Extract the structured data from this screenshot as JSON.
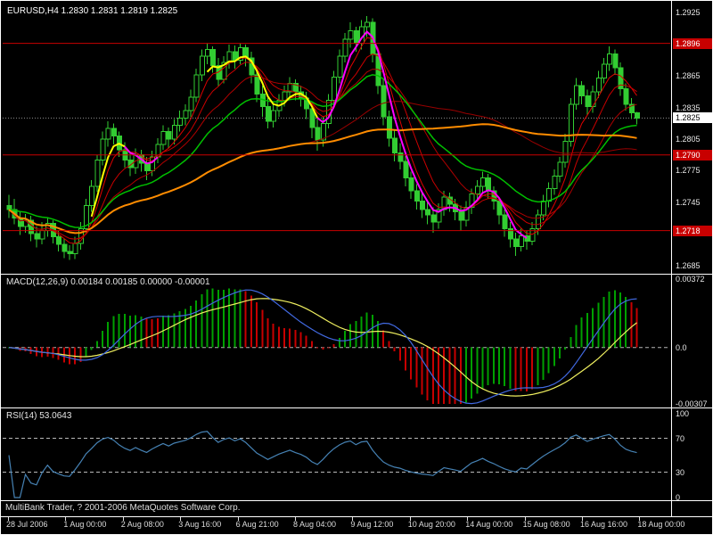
{
  "window": {
    "title": "EURUSD,H4 1.2830 1.2831 1.2819 1.2825",
    "copyright": "MultiBank Trader, ? 2001-2006 MetaQuotes Software Corp."
  },
  "colors": {
    "background": "#000000",
    "foreground": "#FFFFFF",
    "bull_candle": "#32CD32",
    "candle_fill": "#000000",
    "ma_red": "#D40000",
    "ma_green": "#00C000",
    "ma_orange": "#FF8C00",
    "trend_up": "#FFFF00",
    "trend_down": "#FF00FF",
    "hline_red": "#C80000",
    "macd_up": "#00A000",
    "macd_down": "#C80000",
    "macd_line_blue": "#4169E1",
    "macd_signal_yellow": "#F0F060",
    "rsi_line": "#4682B4",
    "level_dash": "#B8B8B8"
  },
  "chart_data": {
    "type": "candlestick",
    "symbol": "EURUSD",
    "timeframe": "H4",
    "ohlc_label": {
      "open": "1.2830",
      "high": "1.2831",
      "low": "1.2819",
      "close": "1.2825"
    },
    "main": {
      "price_max": 1.2933,
      "price_min": 1.2677,
      "current_bid": 1.2825,
      "bid_label": "1.2825",
      "price_ticks": [
        "1.2925",
        "1.2895",
        "1.2865",
        "1.2835",
        "1.2805",
        "1.2775",
        "1.2745",
        "1.2715",
        "1.2685"
      ],
      "hlines": [
        {
          "price": 1.2896,
          "label": "1.2896"
        },
        {
          "price": 1.279,
          "label": "1.2790"
        },
        {
          "price": 1.2718,
          "label": "1.2718"
        }
      ],
      "candles": [
        [
          1.2742,
          1.2752,
          1.273,
          1.2738
        ],
        [
          1.2738,
          1.2748,
          1.2724,
          1.273
        ],
        [
          1.273,
          1.2736,
          1.2714,
          1.2722
        ],
        [
          1.2722,
          1.2734,
          1.2716,
          1.2728
        ],
        [
          1.2728,
          1.2732,
          1.2708,
          1.2715
        ],
        [
          1.2715,
          1.2722,
          1.2702,
          1.271
        ],
        [
          1.271,
          1.2726,
          1.2705,
          1.2718
        ],
        [
          1.2718,
          1.2731,
          1.2712,
          1.2725
        ],
        [
          1.2725,
          1.2728,
          1.2706,
          1.2712
        ],
        [
          1.2712,
          1.2718,
          1.2698,
          1.2705
        ],
        [
          1.2705,
          1.271,
          1.2692,
          1.2698
        ],
        [
          1.2698,
          1.2704,
          1.269,
          1.2696
        ],
        [
          1.2696,
          1.2712,
          1.2691,
          1.2706
        ],
        [
          1.2706,
          1.2726,
          1.27,
          1.272
        ],
        [
          1.272,
          1.2748,
          1.2715,
          1.2742
        ],
        [
          1.2742,
          1.2766,
          1.2736,
          1.276
        ],
        [
          1.276,
          1.279,
          1.2755,
          1.2785
        ],
        [
          1.2785,
          1.2812,
          1.278,
          1.2805
        ],
        [
          1.2805,
          1.2822,
          1.2798,
          1.2815
        ],
        [
          1.2815,
          1.282,
          1.28,
          1.2808
        ],
        [
          1.2808,
          1.2812,
          1.2788,
          1.2795
        ],
        [
          1.2795,
          1.2802,
          1.2778,
          1.2785
        ],
        [
          1.2785,
          1.2792,
          1.277,
          1.2778
        ],
        [
          1.2778,
          1.2796,
          1.2772,
          1.279
        ],
        [
          1.279,
          1.2795,
          1.2774,
          1.2782
        ],
        [
          1.2782,
          1.2788,
          1.2766,
          1.2775
        ],
        [
          1.2775,
          1.2794,
          1.277,
          1.2788
        ],
        [
          1.2788,
          1.2806,
          1.2782,
          1.28
        ],
        [
          1.28,
          1.2818,
          1.2795,
          1.2812
        ],
        [
          1.2812,
          1.2816,
          1.2796,
          1.2805
        ],
        [
          1.2805,
          1.2824,
          1.28,
          1.2818
        ],
        [
          1.2818,
          1.2832,
          1.2812,
          1.2825
        ],
        [
          1.2825,
          1.2838,
          1.2818,
          1.2832
        ],
        [
          1.2832,
          1.2852,
          1.2826,
          1.2845
        ],
        [
          1.2845,
          1.2872,
          1.284,
          1.2866
        ],
        [
          1.2866,
          1.289,
          1.286,
          1.2884
        ],
        [
          1.2884,
          1.2896,
          1.2876,
          1.289
        ],
        [
          1.289,
          1.2893,
          1.2868,
          1.2875
        ],
        [
          1.2875,
          1.2882,
          1.2855,
          1.2862
        ],
        [
          1.2862,
          1.2884,
          1.2858,
          1.2878
        ],
        [
          1.2878,
          1.2895,
          1.2872,
          1.2888
        ],
        [
          1.2888,
          1.2894,
          1.2872,
          1.288
        ],
        [
          1.288,
          1.2896,
          1.2876,
          1.2892
        ],
        [
          1.2892,
          1.2895,
          1.2874,
          1.2882
        ],
        [
          1.2882,
          1.2888,
          1.2858,
          1.2866
        ],
        [
          1.2866,
          1.2872,
          1.284,
          1.2848
        ],
        [
          1.2848,
          1.2856,
          1.2826,
          1.2836
        ],
        [
          1.2836,
          1.2844,
          1.2815,
          1.2822
        ],
        [
          1.2822,
          1.2838,
          1.2816,
          1.2832
        ],
        [
          1.2832,
          1.2848,
          1.2826,
          1.2842
        ],
        [
          1.2842,
          1.2856,
          1.2836,
          1.285
        ],
        [
          1.285,
          1.2864,
          1.2843,
          1.2858
        ],
        [
          1.2858,
          1.2862,
          1.2842,
          1.285
        ],
        [
          1.285,
          1.2856,
          1.2836,
          1.2844
        ],
        [
          1.2844,
          1.285,
          1.2824,
          1.2834
        ],
        [
          1.2834,
          1.284,
          1.2806,
          1.2816
        ],
        [
          1.2816,
          1.2824,
          1.2794,
          1.2804
        ],
        [
          1.2804,
          1.2826,
          1.2798,
          1.282
        ],
        [
          1.282,
          1.2848,
          1.2815,
          1.2842
        ],
        [
          1.2842,
          1.287,
          1.2836,
          1.2864
        ],
        [
          1.2864,
          1.289,
          1.2858,
          1.2884
        ],
        [
          1.2884,
          1.2906,
          1.2878,
          1.29
        ],
        [
          1.29,
          1.2916,
          1.2892,
          1.2908
        ],
        [
          1.2908,
          1.2912,
          1.2888,
          1.2896
        ],
        [
          1.2896,
          1.2918,
          1.289,
          1.2912
        ],
        [
          1.2912,
          1.2922,
          1.2902,
          1.2916
        ],
        [
          1.2916,
          1.292,
          1.2878,
          1.2886
        ],
        [
          1.2886,
          1.2892,
          1.2848,
          1.2856
        ],
        [
          1.2856,
          1.2862,
          1.2818,
          1.2826
        ],
        [
          1.2826,
          1.2832,
          1.2798,
          1.2806
        ],
        [
          1.2806,
          1.2814,
          1.2784,
          1.2792
        ],
        [
          1.2792,
          1.2801,
          1.2776,
          1.2784
        ],
        [
          1.2784,
          1.2789,
          1.276,
          1.2768
        ],
        [
          1.2768,
          1.2774,
          1.2748,
          1.2756
        ],
        [
          1.2756,
          1.2762,
          1.2738,
          1.2746
        ],
        [
          1.2746,
          1.2754,
          1.273,
          1.2738
        ],
        [
          1.2738,
          1.2746,
          1.2724,
          1.2733
        ],
        [
          1.2733,
          1.274,
          1.2716,
          1.2726
        ],
        [
          1.2726,
          1.2744,
          1.272,
          1.2738
        ],
        [
          1.2738,
          1.2756,
          1.2732,
          1.275
        ],
        [
          1.275,
          1.2754,
          1.2736,
          1.2743
        ],
        [
          1.2743,
          1.2748,
          1.2728,
          1.2736
        ],
        [
          1.2736,
          1.2742,
          1.2718,
          1.2728
        ],
        [
          1.2728,
          1.2746,
          1.2722,
          1.274
        ],
        [
          1.274,
          1.2758,
          1.2734,
          1.2753
        ],
        [
          1.2753,
          1.2766,
          1.2746,
          1.276
        ],
        [
          1.276,
          1.2774,
          1.2753,
          1.2768
        ],
        [
          1.2768,
          1.2772,
          1.2748,
          1.2756
        ],
        [
          1.2756,
          1.276,
          1.2738,
          1.2746
        ],
        [
          1.2746,
          1.275,
          1.2724,
          1.2733
        ],
        [
          1.2733,
          1.2738,
          1.2712,
          1.272
        ],
        [
          1.272,
          1.2726,
          1.2702,
          1.271
        ],
        [
          1.271,
          1.2716,
          1.2694,
          1.2703
        ],
        [
          1.2703,
          1.272,
          1.2698,
          1.2713
        ],
        [
          1.2713,
          1.2718,
          1.27,
          1.2708
        ],
        [
          1.2708,
          1.2726,
          1.2704,
          1.272
        ],
        [
          1.272,
          1.2738,
          1.2714,
          1.2733
        ],
        [
          1.2733,
          1.2752,
          1.2728,
          1.2746
        ],
        [
          1.2746,
          1.2764,
          1.274,
          1.2758
        ],
        [
          1.2758,
          1.2776,
          1.2752,
          1.277
        ],
        [
          1.277,
          1.2788,
          1.2764,
          1.2783
        ],
        [
          1.2783,
          1.281,
          1.2778,
          1.2803
        ],
        [
          1.2803,
          1.2844,
          1.2798,
          1.2838
        ],
        [
          1.2838,
          1.2863,
          1.2833,
          1.2856
        ],
        [
          1.2856,
          1.286,
          1.2838,
          1.2846
        ],
        [
          1.2846,
          1.2852,
          1.2828,
          1.2836
        ],
        [
          1.2836,
          1.2856,
          1.283,
          1.285
        ],
        [
          1.285,
          1.287,
          1.2844,
          1.2863
        ],
        [
          1.2863,
          1.2882,
          1.2858,
          1.2876
        ],
        [
          1.2876,
          1.2893,
          1.287,
          1.2886
        ],
        [
          1.2886,
          1.289,
          1.2866,
          1.2873
        ],
        [
          1.2873,
          1.2878,
          1.2846,
          1.2853
        ],
        [
          1.2853,
          1.2858,
          1.2832,
          1.2838
        ],
        [
          1.2838,
          1.2844,
          1.2824,
          1.283
        ],
        [
          1.283,
          1.2831,
          1.2819,
          1.2825
        ]
      ]
    },
    "overlays": [
      {
        "type": "lwma",
        "period": 8,
        "color": "#E00000",
        "width": 1
      },
      {
        "type": "lwma",
        "period": 13,
        "color": "#C80000",
        "width": 1
      },
      {
        "type": "lwma",
        "period": 21,
        "color": "#B00000",
        "width": 1
      },
      {
        "type": "sma",
        "period": 55,
        "color": "#980000",
        "width": 1
      },
      {
        "type": "ema",
        "period": 24,
        "color": "#00C000",
        "width": 1.5
      },
      {
        "type": "sma",
        "period": 72,
        "color": "#FF8C00",
        "width": 2
      }
    ],
    "trend_segments": [
      {
        "color": "#FFFF00",
        "from": 15,
        "to": 21
      },
      {
        "color": "#FF00FF",
        "from": 21,
        "to": 27
      },
      {
        "color": "#FFFF00",
        "from": 36,
        "to": 56
      },
      {
        "color": "#FF00FF",
        "from": 56,
        "to": 94
      }
    ],
    "macd": {
      "label": "MACD(12,26,9) 0.00184 0.00185 0.00000 -0.00001",
      "scale_max": 0.00372,
      "scale_min": -0.00307,
      "ticks": [
        {
          "v": 0.00372,
          "label": "0.00372"
        },
        {
          "v": 0,
          "label": "0.0"
        },
        {
          "v": -0.00307,
          "label": "-0.00307"
        }
      ]
    },
    "rsi": {
      "label": "RSI(14) 53.0643",
      "levels": [
        70,
        30
      ],
      "ticks": [
        {
          "v": 100,
          "label": "100"
        },
        {
          "v": 70,
          "label": "70"
        },
        {
          "v": 30,
          "label": "30"
        },
        {
          "v": 0,
          "label": "0"
        }
      ]
    },
    "time_labels": [
      "28 Jul 2006",
      "1 Aug 00:00",
      "2 Aug 08:00",
      "3 Aug 16:00",
      "6 Aug 21:00",
      "8 Aug 04:00",
      "9 Aug 12:00",
      "10 Aug 20:00",
      "14 Aug 00:00",
      "15 Aug 08:00",
      "16 Aug 16:00",
      "18 Aug 00:00"
    ]
  }
}
